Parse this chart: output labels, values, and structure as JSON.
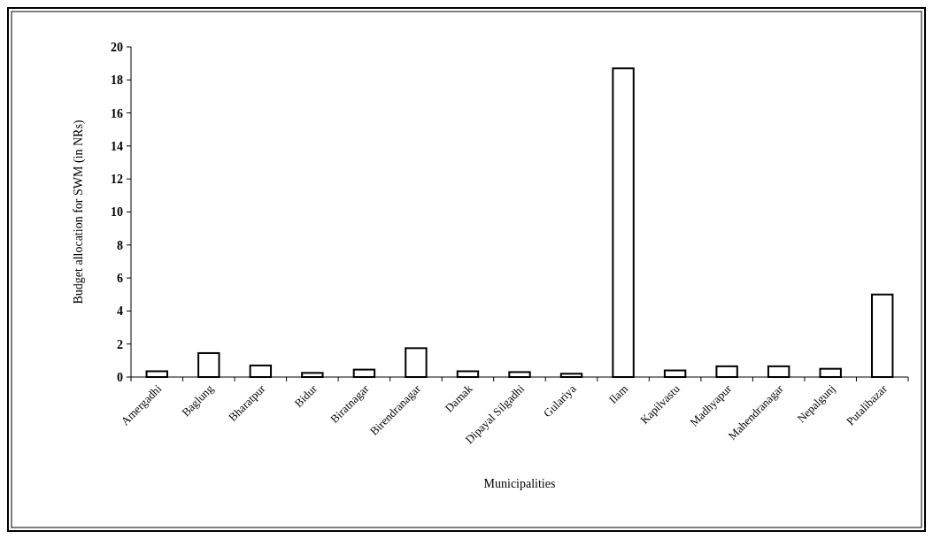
{
  "chart_data": {
    "type": "bar",
    "xlabel": "Municipalities",
    "ylabel": "Budget allocation for SWM (in NRs)",
    "categories": [
      "Amergadhi",
      "Baglung",
      "Bharatpur",
      "Bidur",
      "Biratnagar",
      "Birendranagar",
      "Damak",
      "Dipayal Silgadhi",
      "Gulariya",
      "Ilam",
      "Kapilvastu",
      "Madhyapur",
      "Mahendranagar",
      "Nepalgunj",
      "Putalibazar"
    ],
    "values": [
      0.35,
      1.45,
      0.7,
      0.25,
      0.45,
      1.75,
      0.35,
      0.3,
      0.2,
      18.7,
      0.4,
      0.65,
      0.65,
      0.5,
      5.0
    ],
    "color": "#ffffff",
    "ylim": [
      0,
      20
    ],
    "yticks": [
      0,
      2,
      4,
      6,
      8,
      10,
      12,
      14,
      16,
      18,
      20
    ],
    "grid": false
  }
}
